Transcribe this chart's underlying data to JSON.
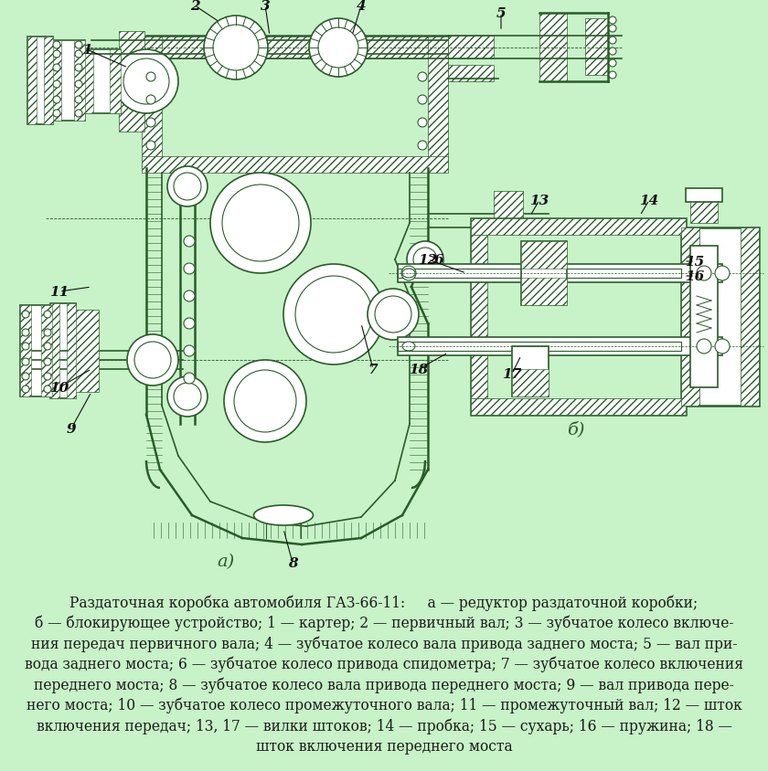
{
  "background_color": "#c8f2c8",
  "caption_line1": "Раздаточная коробка автомобиля ГАЗ-66-11:     а — редуктор раздаточной коробки;",
  "caption_line2": "б — блокирующее устройство; 1 — картер; 2 — первичный вал; 3 — зубчатое колесо включе-",
  "caption_line3": "ния передач первичного вала; 4 — зубчатое колесо вала привода заднего моста; 5 — вал при-",
  "caption_line4": "вода заднего моста; 6 — зубчатое колесо привода спидометра; 7 — зубчатое колесо включения",
  "caption_line5": "переднего моста; 8 — зубчатое колесо вала привода переднего моста; 9 — вал привода пере-",
  "caption_line6": "него моста; 10 — зубчатое колесо промежуточного вала; 11 — промежуточный вал; 12 — шток",
  "caption_line7": "включения передач; 13, 17 — вилки штоков; 14 — пробка; 15 — сухарь; 16 — пружина; 18 —",
  "caption_line8": "шток включения переднего моста",
  "fig_width": 8.4,
  "fig_height": 8.45,
  "dpi": 100,
  "drawing_color": "#2a5c2a",
  "label_a": "а)",
  "label_b": "б)",
  "bg_green": "#c8f2c8"
}
